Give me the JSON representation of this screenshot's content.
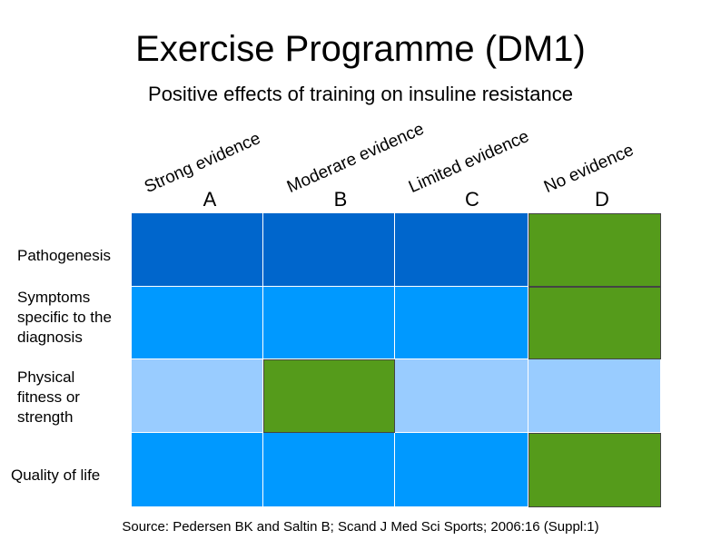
{
  "title": "Exercise Programme (DM1)",
  "subtitle": "Positive effects of training on insuline resistance",
  "columns": [
    {
      "letter": "A",
      "evidence": "Strong evidence"
    },
    {
      "letter": "B",
      "evidence": "Moderare evidence"
    },
    {
      "letter": "C",
      "evidence": "Limited evidence"
    },
    {
      "letter": "D",
      "evidence": "No evidence"
    }
  ],
  "rows": [
    {
      "label": "Pathogenesis",
      "cells": [
        "dark-blue",
        "dark-blue",
        "dark-blue",
        "green"
      ]
    },
    {
      "label": "Symptoms specific to the diagnosis",
      "cells": [
        "blue",
        "blue",
        "blue",
        "green"
      ]
    },
    {
      "label": "Physical fitness or strength",
      "cells": [
        "light-blue",
        "green",
        "light-blue",
        "light-blue"
      ]
    },
    {
      "label": "Quality of life",
      "cells": [
        "blue",
        "blue",
        "blue",
        "green"
      ]
    }
  ],
  "colors": {
    "dark-blue": "#0066cc",
    "blue": "#0099ff",
    "light-blue": "#99ccff",
    "green": "#559b1b"
  },
  "source": "Source: Pedersen BK and Saltin B; Scand  J  Med Sci Sports; 2006:16 (Suppl:1)"
}
